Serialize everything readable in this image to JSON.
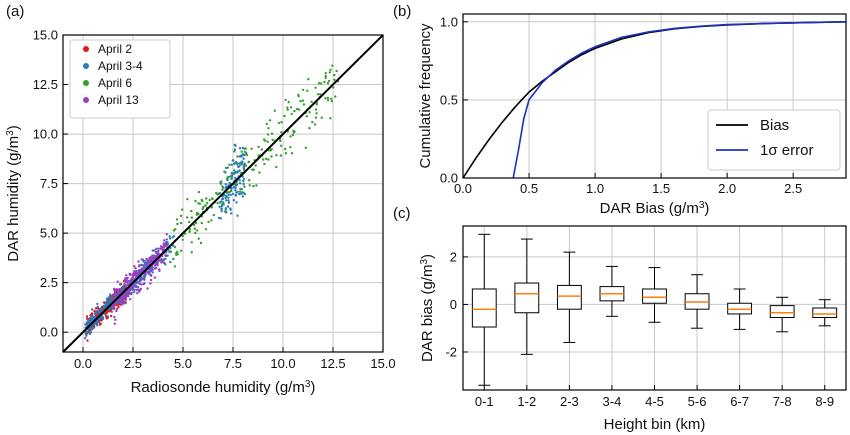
{
  "chart_data": [
    {
      "panel": "(a)",
      "type": "scatter",
      "xlabel": "Radiosonde humidity (g/m",
      "ylabel": "DAR humidity (g/m",
      "unit_superscript": "3",
      "xlim": [
        -1.0,
        15.0
      ],
      "ylim": [
        -1.0,
        15.0
      ],
      "xticks": [
        "0.0",
        "2.5",
        "5.0",
        "7.5",
        "10.0",
        "12.5",
        "15.0"
      ],
      "yticks": [
        "0.0",
        "2.5",
        "5.0",
        "7.5",
        "10.0",
        "12.5",
        "15.0"
      ],
      "grid": true,
      "legend_placement": "top-left",
      "reference_line": "1:1",
      "series": [
        {
          "name": "April 2",
          "color": "#e31a1c",
          "clusters": [
            {
              "x": [
                0.2,
                2.2
              ],
              "slope": 0.95,
              "spread": 0.4,
              "n": 420
            }
          ]
        },
        {
          "name": "April 3-4",
          "color": "#2b7bba",
          "clusters": [
            {
              "x": [
                0.1,
                3.5
              ],
              "slope": 1.0,
              "spread": 0.45,
              "n": 380
            },
            {
              "x": [
                6.8,
                8.1
              ],
              "slope": 1.6,
              "spread": 1.4,
              "n": 150
            },
            {
              "x": [
                2.8,
                4.6
              ],
              "slope": 0.95,
              "spread": 0.6,
              "n": 80
            }
          ]
        },
        {
          "name": "April 6",
          "color": "#33a02c",
          "clusters": [
            {
              "x": [
                4.3,
                12.8
              ],
              "slope": 1.0,
              "spread": 1.4,
              "n": 230
            }
          ]
        },
        {
          "name": "April 13",
          "color": "#9a3fc4",
          "clusters": [
            {
              "x": [
                1.5,
                4.2
              ],
              "slope": 1.0,
              "spread": 0.7,
              "n": 260
            }
          ]
        }
      ]
    },
    {
      "panel": "(b)",
      "type": "line",
      "xlabel": "DAR Bias (g/m",
      "ylabel": "Cumulative frequency",
      "unit_superscript": "3",
      "xlim": [
        0.0,
        2.9
      ],
      "ylim": [
        0.0,
        1.05
      ],
      "xticks": [
        "0.0",
        "0.5",
        "1.0",
        "1.5",
        "2.0",
        "2.5"
      ],
      "yticks": [
        "0.0",
        "0.5",
        "1.0"
      ],
      "grid": true,
      "legend_placement": "bottom-right",
      "series": [
        {
          "name": "Bias",
          "color": "#000000",
          "x": [
            0.0,
            0.1,
            0.2,
            0.3,
            0.4,
            0.5,
            0.6,
            0.7,
            0.8,
            0.9,
            1.0,
            1.2,
            1.4,
            1.6,
            1.8,
            2.0,
            2.3,
            2.6,
            2.9
          ],
          "y": [
            0.0,
            0.13,
            0.25,
            0.36,
            0.46,
            0.55,
            0.62,
            0.68,
            0.74,
            0.79,
            0.83,
            0.89,
            0.93,
            0.955,
            0.97,
            0.98,
            0.99,
            0.995,
            1.0
          ]
        },
        {
          "name": "1σ error",
          "color": "#1f2fbf",
          "x": [
            0.38,
            0.42,
            0.46,
            0.5,
            0.6,
            0.7,
            0.8,
            0.9,
            1.0,
            1.2,
            1.4,
            1.6,
            1.8,
            2.0,
            2.3,
            2.6,
            2.9
          ],
          "y": [
            0.0,
            0.18,
            0.38,
            0.5,
            0.61,
            0.69,
            0.75,
            0.8,
            0.84,
            0.9,
            0.935,
            0.958,
            0.972,
            0.982,
            0.99,
            0.995,
            1.0
          ]
        }
      ]
    },
    {
      "panel": "(c)",
      "type": "box",
      "xlabel": "Height bin (km)",
      "ylabel": "DAR bias (g/m",
      "unit_superscript": "3",
      "ylim": [
        -3.6,
        3.3
      ],
      "yticks": [
        "2",
        "0",
        "-2"
      ],
      "yticks_values": [
        2,
        0,
        -2
      ],
      "grid": true,
      "median_color": "#ff7f0e",
      "categories": [
        "0-1",
        "1-2",
        "2-3",
        "3-4",
        "4-5",
        "5-6",
        "6-7",
        "7-8",
        "8-9"
      ],
      "boxes": [
        {
          "whisker_low": -3.4,
          "q1": -0.95,
          "median": -0.2,
          "q3": 0.65,
          "whisker_high": 2.95
        },
        {
          "whisker_low": -2.1,
          "q1": -0.35,
          "median": 0.45,
          "q3": 0.9,
          "whisker_high": 2.75
        },
        {
          "whisker_low": -1.6,
          "q1": -0.2,
          "median": 0.35,
          "q3": 0.8,
          "whisker_high": 2.2
        },
        {
          "whisker_low": -0.5,
          "q1": 0.15,
          "median": 0.45,
          "q3": 0.75,
          "whisker_high": 1.6
        },
        {
          "whisker_low": -0.75,
          "q1": 0.05,
          "median": 0.3,
          "q3": 0.65,
          "whisker_high": 1.55
        },
        {
          "whisker_low": -1.0,
          "q1": -0.2,
          "median": 0.1,
          "q3": 0.45,
          "whisker_high": 1.25
        },
        {
          "whisker_low": -1.05,
          "q1": -0.4,
          "median": -0.2,
          "q3": 0.05,
          "whisker_high": 0.65
        },
        {
          "whisker_low": -1.15,
          "q1": -0.55,
          "median": -0.35,
          "q3": -0.05,
          "whisker_high": 0.3
        },
        {
          "whisker_low": -0.9,
          "q1": -0.55,
          "median": -0.4,
          "q3": -0.15,
          "whisker_high": 0.2
        }
      ]
    }
  ]
}
